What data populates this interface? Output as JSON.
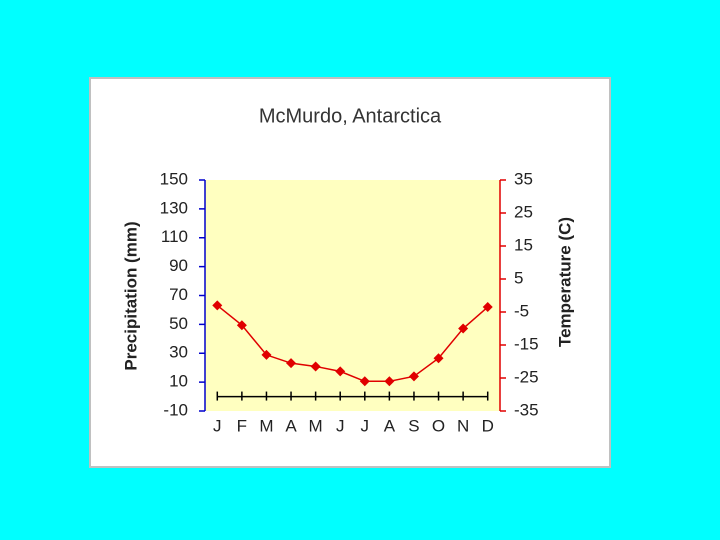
{
  "chart_data": {
    "type": "line",
    "title": "McMurdo, Antarctica",
    "y_label": "Precipitation (mm)",
    "y2_label": "Temperature (C)",
    "categories": [
      "J",
      "F",
      "M",
      "A",
      "M",
      "J",
      "J",
      "A",
      "S",
      "O",
      "N",
      "D"
    ],
    "series": [
      {
        "color": "#000000",
        "values": [
          0,
          0,
          0,
          0,
          0,
          0,
          0,
          0,
          0,
          0,
          0,
          0
        ]
      },
      {
        "color": "#e00000",
        "axis": "y2",
        "values": [
          -3,
          -9,
          -18,
          -20.5,
          -21.5,
          -23,
          -26,
          -26,
          -24.5,
          -19,
          -10,
          -3.5
        ]
      }
    ],
    "ylim": [
      -10,
      150
    ],
    "yticks": [
      -10,
      10,
      30,
      50,
      70,
      90,
      110,
      130,
      150
    ],
    "y2lim": [
      -35,
      35
    ],
    "y2ticks": [
      -35,
      -25,
      -15,
      -5,
      5,
      15,
      25,
      35
    ],
    "plot_background": "#ffffc0",
    "y_axis_color": "#0000cc",
    "y2_axis_color": "#e00000"
  }
}
